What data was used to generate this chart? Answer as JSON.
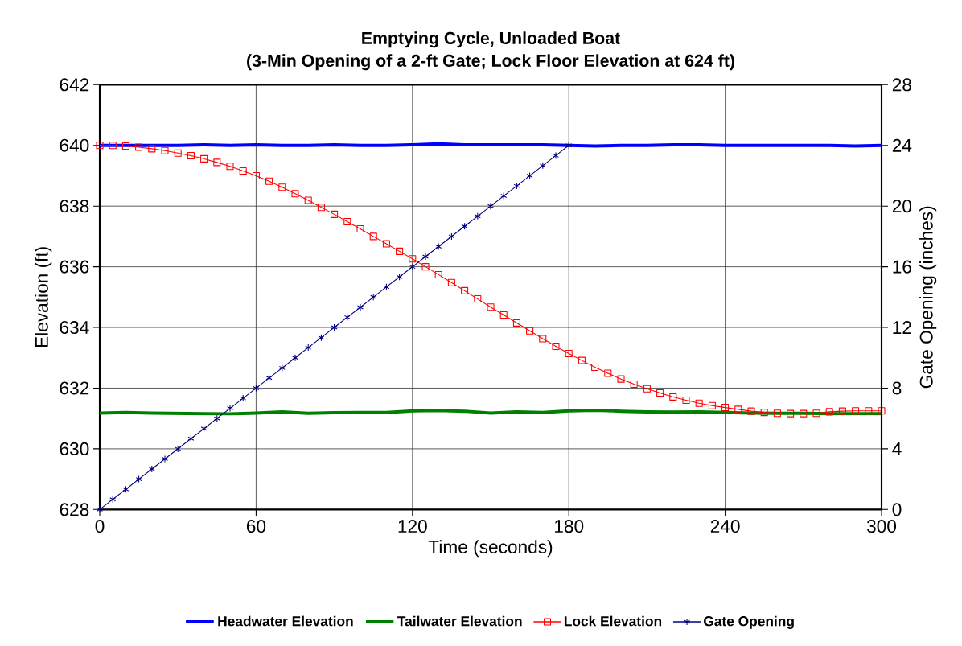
{
  "chart_data": {
    "type": "line",
    "title": "Emptying Cycle, Unloaded Boat",
    "subtitle": "(3-Min Opening of a 2-ft Gate; Lock Floor Elevation at 624 ft)",
    "xlabel": "Time (seconds)",
    "ylabel": "Elevation (ft)",
    "y2label": "Gate Opening (inches)",
    "xlim": [
      0,
      300
    ],
    "xticks": [
      0,
      60,
      120,
      180,
      240,
      300
    ],
    "ylim": [
      628,
      642
    ],
    "yticks": [
      628,
      630,
      632,
      634,
      636,
      638,
      640,
      642
    ],
    "y2lim": [
      0,
      28
    ],
    "y2ticks": [
      0,
      4,
      8,
      12,
      16,
      20,
      24,
      28
    ],
    "grid": true,
    "legend": "bottom",
    "series": [
      {
        "name": "Headwater Elevation",
        "color": "#0000ff",
        "marker": "none",
        "x": [
          0,
          10,
          20,
          30,
          40,
          50,
          60,
          70,
          80,
          90,
          100,
          110,
          120,
          130,
          140,
          150,
          160,
          170,
          180,
          190,
          200,
          210,
          220,
          230,
          240,
          250,
          260,
          270,
          280,
          290,
          300
        ],
        "values": [
          640.0,
          640.0,
          640.0,
          640.0,
          640.02,
          640.0,
          640.02,
          640.0,
          640.0,
          640.02,
          640.0,
          640.0,
          640.02,
          640.05,
          640.02,
          640.02,
          640.02,
          640.02,
          640.0,
          639.98,
          640.0,
          640.0,
          640.02,
          640.02,
          640.0,
          640.0,
          640.0,
          640.0,
          640.0,
          639.98,
          640.0
        ]
      },
      {
        "name": "Tailwater Elevation",
        "color": "#008000",
        "marker": "none",
        "x": [
          0,
          10,
          20,
          30,
          40,
          50,
          60,
          70,
          80,
          90,
          100,
          110,
          120,
          130,
          140,
          150,
          160,
          170,
          180,
          190,
          200,
          210,
          220,
          230,
          240,
          250,
          260,
          270,
          280,
          290,
          300
        ],
        "values": [
          631.18,
          631.2,
          631.18,
          631.17,
          631.16,
          631.15,
          631.18,
          631.22,
          631.17,
          631.19,
          631.2,
          631.2,
          631.25,
          631.26,
          631.24,
          631.18,
          631.22,
          631.2,
          631.25,
          631.27,
          631.24,
          631.22,
          631.21,
          631.22,
          631.2,
          631.18,
          631.17,
          631.17,
          631.16,
          631.16,
          631.16
        ]
      },
      {
        "name": "Lock Elevation",
        "color": "#ff0000",
        "marker": "square",
        "x": [
          0,
          5,
          10,
          15,
          20,
          25,
          30,
          35,
          40,
          45,
          50,
          55,
          60,
          65,
          70,
          75,
          80,
          85,
          90,
          95,
          100,
          105,
          110,
          115,
          120,
          125,
          130,
          135,
          140,
          145,
          150,
          155,
          160,
          165,
          170,
          175,
          180,
          185,
          190,
          195,
          200,
          205,
          210,
          215,
          220,
          225,
          230,
          235,
          240,
          245,
          250,
          255,
          260,
          265,
          270,
          275,
          280,
          285,
          290,
          295,
          300
        ],
        "values": [
          640.0,
          640.0,
          639.98,
          639.94,
          639.89,
          639.83,
          639.75,
          639.66,
          639.56,
          639.44,
          639.31,
          639.16,
          639.0,
          638.82,
          638.62,
          638.41,
          638.19,
          637.96,
          637.73,
          637.49,
          637.25,
          637.0,
          636.76,
          636.51,
          636.26,
          636.0,
          635.74,
          635.48,
          635.21,
          634.94,
          634.67,
          634.41,
          634.15,
          633.89,
          633.63,
          633.38,
          633.14,
          632.91,
          632.69,
          632.49,
          632.3,
          632.13,
          631.98,
          631.84,
          631.71,
          631.6,
          631.5,
          631.42,
          631.36,
          631.3,
          631.24,
          631.2,
          631.17,
          631.16,
          631.16,
          631.17,
          631.22,
          631.24,
          631.25,
          631.25,
          631.25
        ]
      },
      {
        "name": "Gate Opening",
        "color": "#000080",
        "marker": "cross",
        "axis": "y2",
        "x": [
          0,
          5,
          10,
          15,
          20,
          25,
          30,
          35,
          40,
          45,
          50,
          55,
          60,
          65,
          70,
          75,
          80,
          85,
          90,
          95,
          100,
          105,
          110,
          115,
          120,
          125,
          130,
          135,
          140,
          145,
          150,
          155,
          160,
          165,
          170,
          175,
          180
        ],
        "values": [
          0,
          0.67,
          1.33,
          2,
          2.67,
          3.33,
          4,
          4.67,
          5.33,
          6,
          6.67,
          7.33,
          8,
          8.67,
          9.33,
          10,
          10.67,
          11.33,
          12,
          12.67,
          13.33,
          14,
          14.67,
          15.33,
          16,
          16.67,
          17.33,
          18,
          18.67,
          19.33,
          20,
          20.67,
          21.33,
          22,
          22.67,
          23.33,
          24
        ]
      }
    ]
  }
}
